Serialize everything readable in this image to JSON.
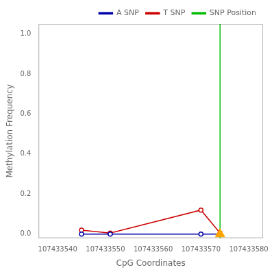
{
  "chart_data": {
    "type": "line",
    "xlabel": "CpG Coordinates",
    "ylabel": "Methylation Frequency",
    "xlim": [
      107433536,
      107433583
    ],
    "ylim": [
      -0.02,
      1.05
    ],
    "xticks": [
      107433540,
      107433550,
      107433560,
      107433570,
      107433580
    ],
    "yticks": [
      {
        "value": 0.0,
        "label": "0.0"
      },
      0.2,
      0.4,
      0.6,
      0.8,
      {
        "value": 1.0,
        "label": "1.0"
      }
    ],
    "grid": false,
    "legend": "upper right",
    "series": [
      {
        "name": "A SNP",
        "color": "#0000aa",
        "marker": "circle",
        "x": [
          107433545,
          107433551,
          107433570,
          107433574
        ],
        "values": [
          0.0,
          0.0,
          0.0,
          0.0
        ]
      },
      {
        "name": "T SNP",
        "color": "#cc0000",
        "marker": "circle",
        "x": [
          107433545,
          107433551,
          107433570,
          107433574
        ],
        "values": [
          0.02,
          0.005,
          0.12,
          0.005
        ]
      },
      {
        "name": "SNP Position",
        "color": "#00bb00",
        "type": "vline",
        "x": 107433574
      }
    ],
    "markers": [
      {
        "x": 107433574,
        "y": 0.0,
        "color": "#FFA500",
        "marker": "triangle"
      }
    ]
  }
}
